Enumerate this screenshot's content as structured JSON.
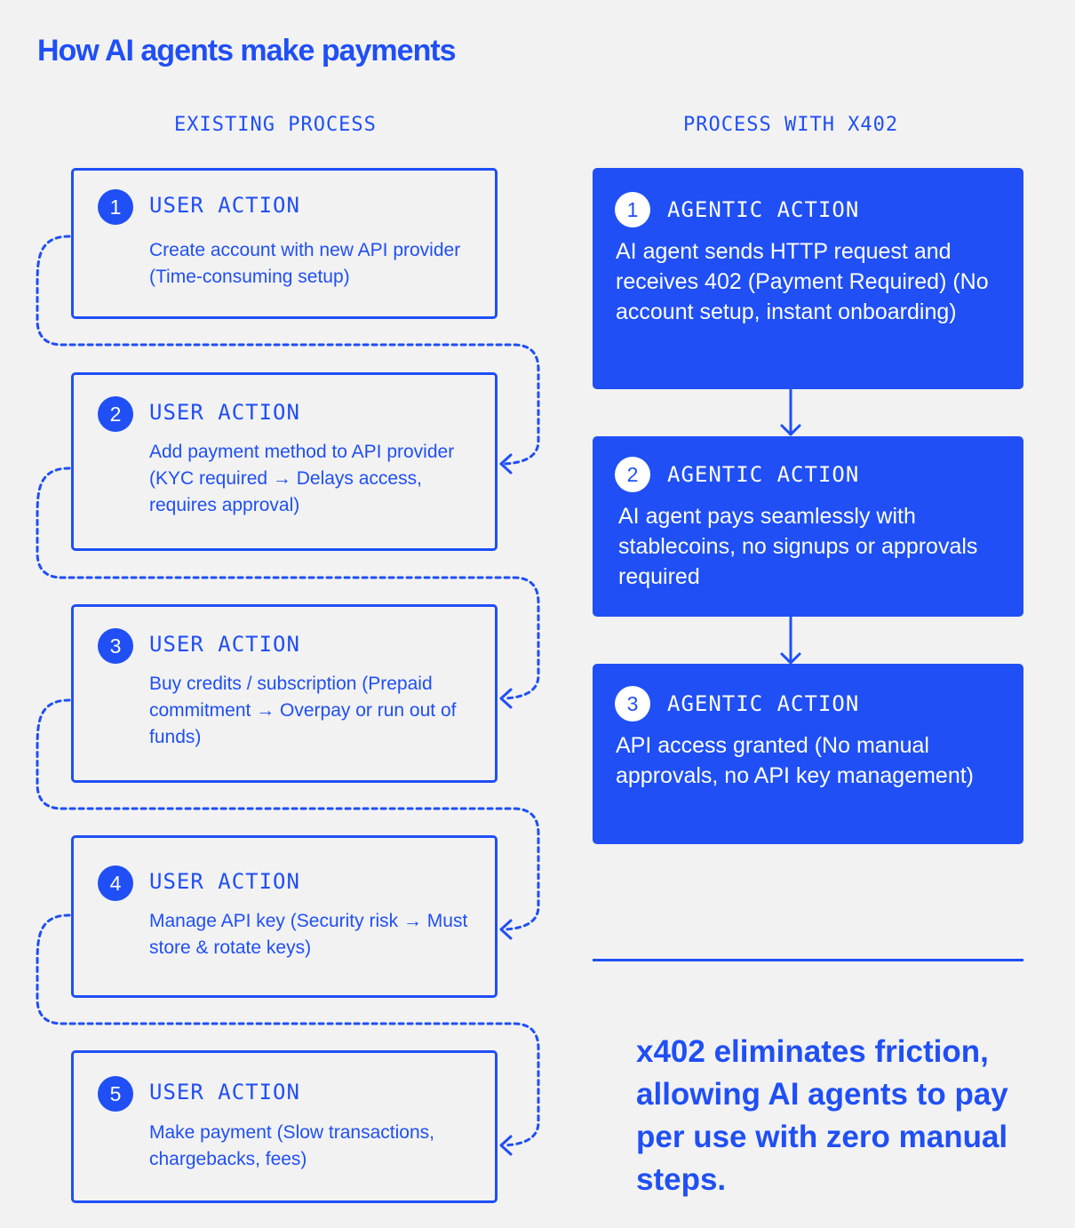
{
  "title": "How AI agents make payments",
  "columns": {
    "existing": "EXISTING PROCESS",
    "x402": "PROCESS WITH X402"
  },
  "existing_steps": [
    {
      "num": "1",
      "label": "USER ACTION",
      "desc": "Create account with new API provider (Time-consuming setup)"
    },
    {
      "num": "2",
      "label": "USER ACTION",
      "desc": "Add payment method to API provider (KYC required → Delays access, requires approval)"
    },
    {
      "num": "3",
      "label": "USER ACTION",
      "desc": "Buy credits / subscription (Prepaid commitment → Overpay or run out of funds)"
    },
    {
      "num": "4",
      "label": "USER ACTION",
      "desc": "Manage API key (Security risk → Must store & rotate keys)"
    },
    {
      "num": "5",
      "label": "USER ACTION",
      "desc": "Make payment (Slow transactions, chargebacks, fees)"
    }
  ],
  "x402_steps": [
    {
      "num": "1",
      "label": "AGENTIC ACTION",
      "desc": "AI agent sends HTTP request and receives 402 (Payment Required) (No account setup, instant onboarding)"
    },
    {
      "num": "2",
      "label": "AGENTIC ACTION",
      "desc": "AI agent pays seamlessly with stablecoins, no signups or approvals required"
    },
    {
      "num": "3",
      "label": "AGENTIC ACTION",
      "desc": "API access granted (No manual approvals, no API key management)"
    }
  ],
  "tagline": "x402 eliminates friction, allowing AI agents to pay per use with zero manual steps.",
  "colors": {
    "accent": "#1f4ff5",
    "background": "#f2f2f2",
    "on_accent": "#ffffff"
  }
}
